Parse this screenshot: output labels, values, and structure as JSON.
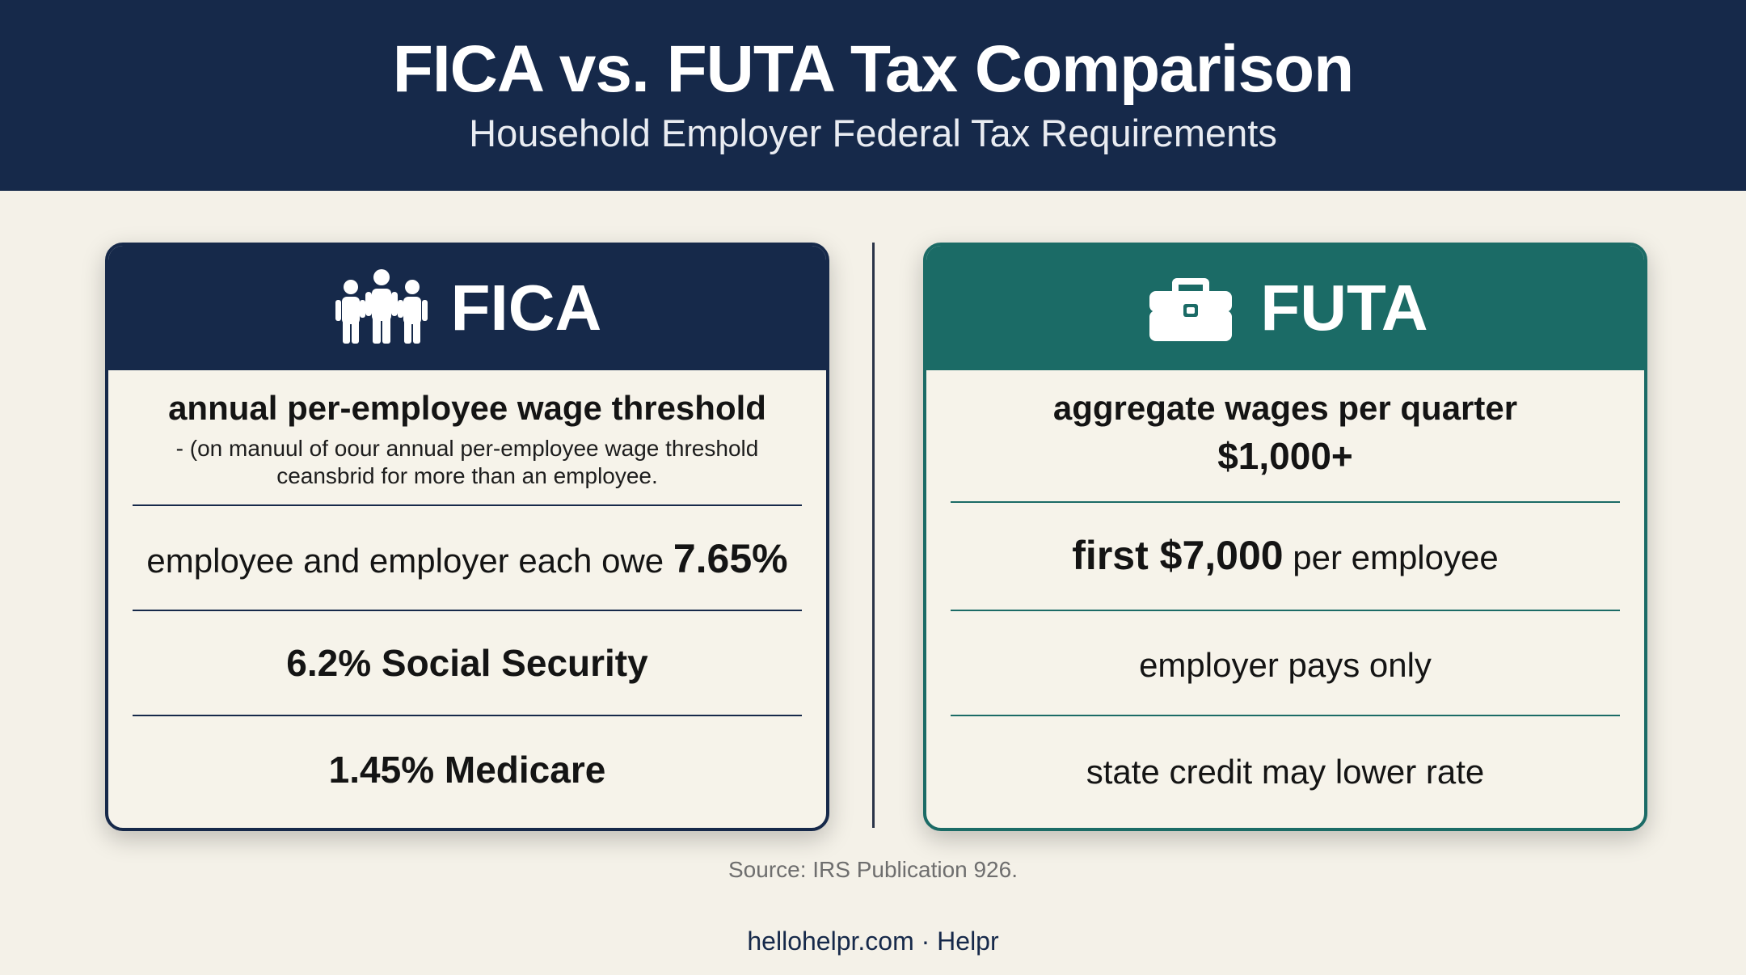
{
  "header": {
    "title": "FICA vs. FUTA Tax Comparison",
    "subtitle": "Household Employer Federal Tax Requirements"
  },
  "colors": {
    "navy": "#16294a",
    "teal": "#1b6b66",
    "background": "#f4f1e8"
  },
  "fica": {
    "icon": "people-group-icon",
    "name": "FICA",
    "threshold_heading": "annual per-employee wage threshold",
    "threshold_note_line1": "- (on manuul of oour annual per-employee wage threshold",
    "threshold_note_line2": "ceansbrid for more than an employee.",
    "rate_text": "employee and employer each owe",
    "rate_value": "7.65%",
    "social_security": "6.2% Social Security",
    "medicare": "1.45% Medicare"
  },
  "futa": {
    "icon": "briefcase-icon",
    "name": "FUTA",
    "threshold_heading": "aggregate wages per quarter",
    "threshold_value": "$1,000+",
    "wage_base_value": "first $7,000",
    "wage_base_text": "per employee",
    "payer": "employer pays only",
    "credit": "state credit may lower rate"
  },
  "footer": {
    "source": "Source: IRS Publication 926.",
    "brand": "hellohelpr.com · Helpr"
  }
}
